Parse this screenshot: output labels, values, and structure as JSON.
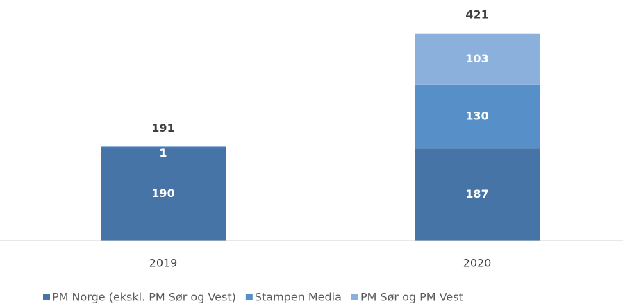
{
  "chart_data": {
    "type": "stacked_bar",
    "categories": [
      "2019",
      "2020"
    ],
    "series": [
      {
        "name": "PM Norge (ekskl. PM Sør og Vest)",
        "color": "#4674a6",
        "values": [
          190,
          187
        ]
      },
      {
        "name": "Stampen Media",
        "color": "#5790c8",
        "values": [
          1,
          130
        ]
      },
      {
        "name": "PM Sør og PM Vest",
        "color": "#8cb0dc",
        "values": [
          null,
          103
        ]
      }
    ],
    "totals": [
      191,
      421
    ]
  }
}
